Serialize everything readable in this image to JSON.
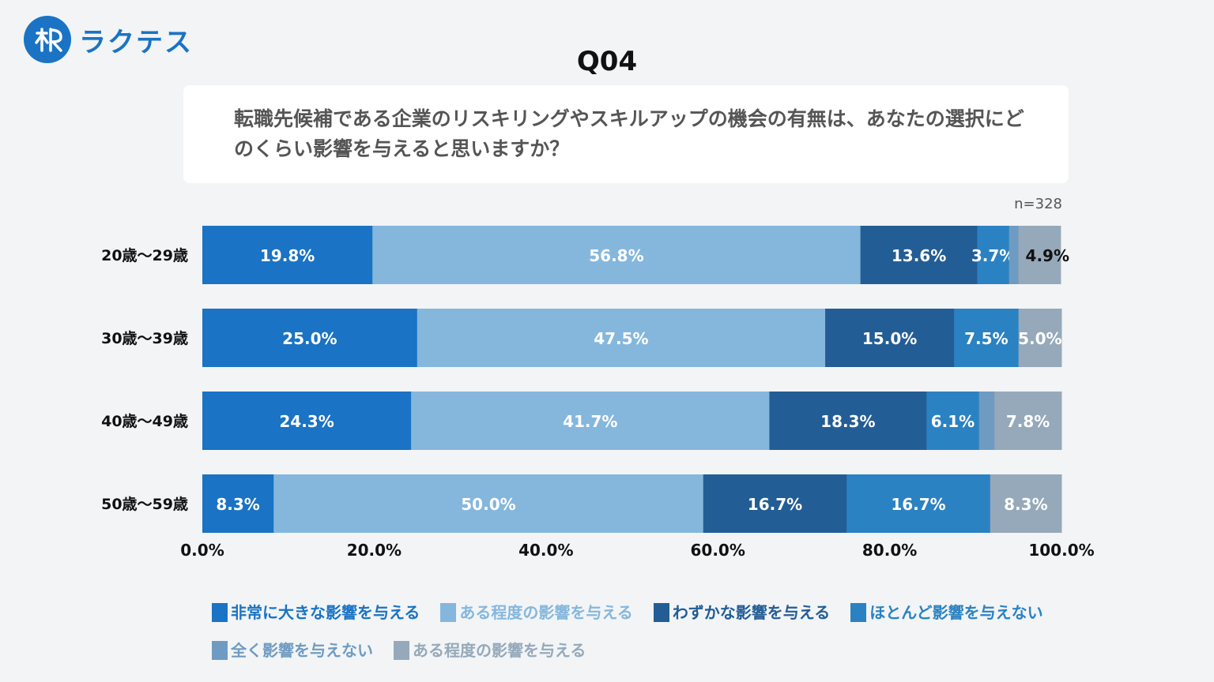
{
  "brand": {
    "name": "ラクテス"
  },
  "question": {
    "label": "Q04",
    "text": "転職先候補である企業のリスキリングやスキルアップの機会の有無は、あなたの選択にどのくらい影響を与えると思いますか？"
  },
  "sample_size": "n=328",
  "colors": {
    "very_large": "#1a73c4",
    "some": "#85b7dd",
    "slight": "#235d95",
    "hardly": "#2b82c2",
    "none": "#6f9bc2",
    "extra": "#95a9ba"
  },
  "chart_data": {
    "type": "bar",
    "orientation": "horizontal",
    "stacked": true,
    "categories": [
      "20歳〜29歳",
      "30歳〜39歳",
      "40歳〜49歳",
      "50歳〜59歳"
    ],
    "xlim": [
      0,
      100
    ],
    "xticks": [
      "0.0%",
      "20.0%",
      "40.0%",
      "60.0%",
      "80.0%",
      "100.0%"
    ],
    "legend_position": "bottom",
    "grid": false,
    "series": [
      {
        "name": "非常に大きな影響を与える",
        "values": [
          19.8,
          25.0,
          24.3,
          8.3
        ],
        "labels": [
          "19.8%",
          "25.0%",
          "24.3%",
          "8.3%"
        ]
      },
      {
        "name": "ある程度の影響を与える",
        "values": [
          56.8,
          47.5,
          41.7,
          50.0
        ],
        "labels": [
          "56.8%",
          "47.5%",
          "41.7%",
          "50.0%"
        ]
      },
      {
        "name": "わずかな影響を与える",
        "values": [
          13.6,
          15.0,
          18.3,
          16.7
        ],
        "labels": [
          "13.6%",
          "15.0%",
          "18.3%",
          "16.7%"
        ]
      },
      {
        "name": "ほとんど影響を与えない",
        "values": [
          3.7,
          7.5,
          6.1,
          16.7
        ],
        "labels": [
          "3.7%",
          "7.5%",
          "6.1%",
          "16.7%"
        ]
      },
      {
        "name": "全く影響を与えない",
        "values": [
          1.1,
          0.0,
          1.8,
          0.0
        ],
        "labels": [
          "",
          "",
          "",
          ""
        ]
      },
      {
        "name": "ある程度の影響を与える",
        "values": [
          4.9,
          5.0,
          7.8,
          8.3
        ],
        "labels": [
          "4.9%",
          "5.0%",
          "7.8%",
          "8.3%"
        ]
      }
    ]
  }
}
